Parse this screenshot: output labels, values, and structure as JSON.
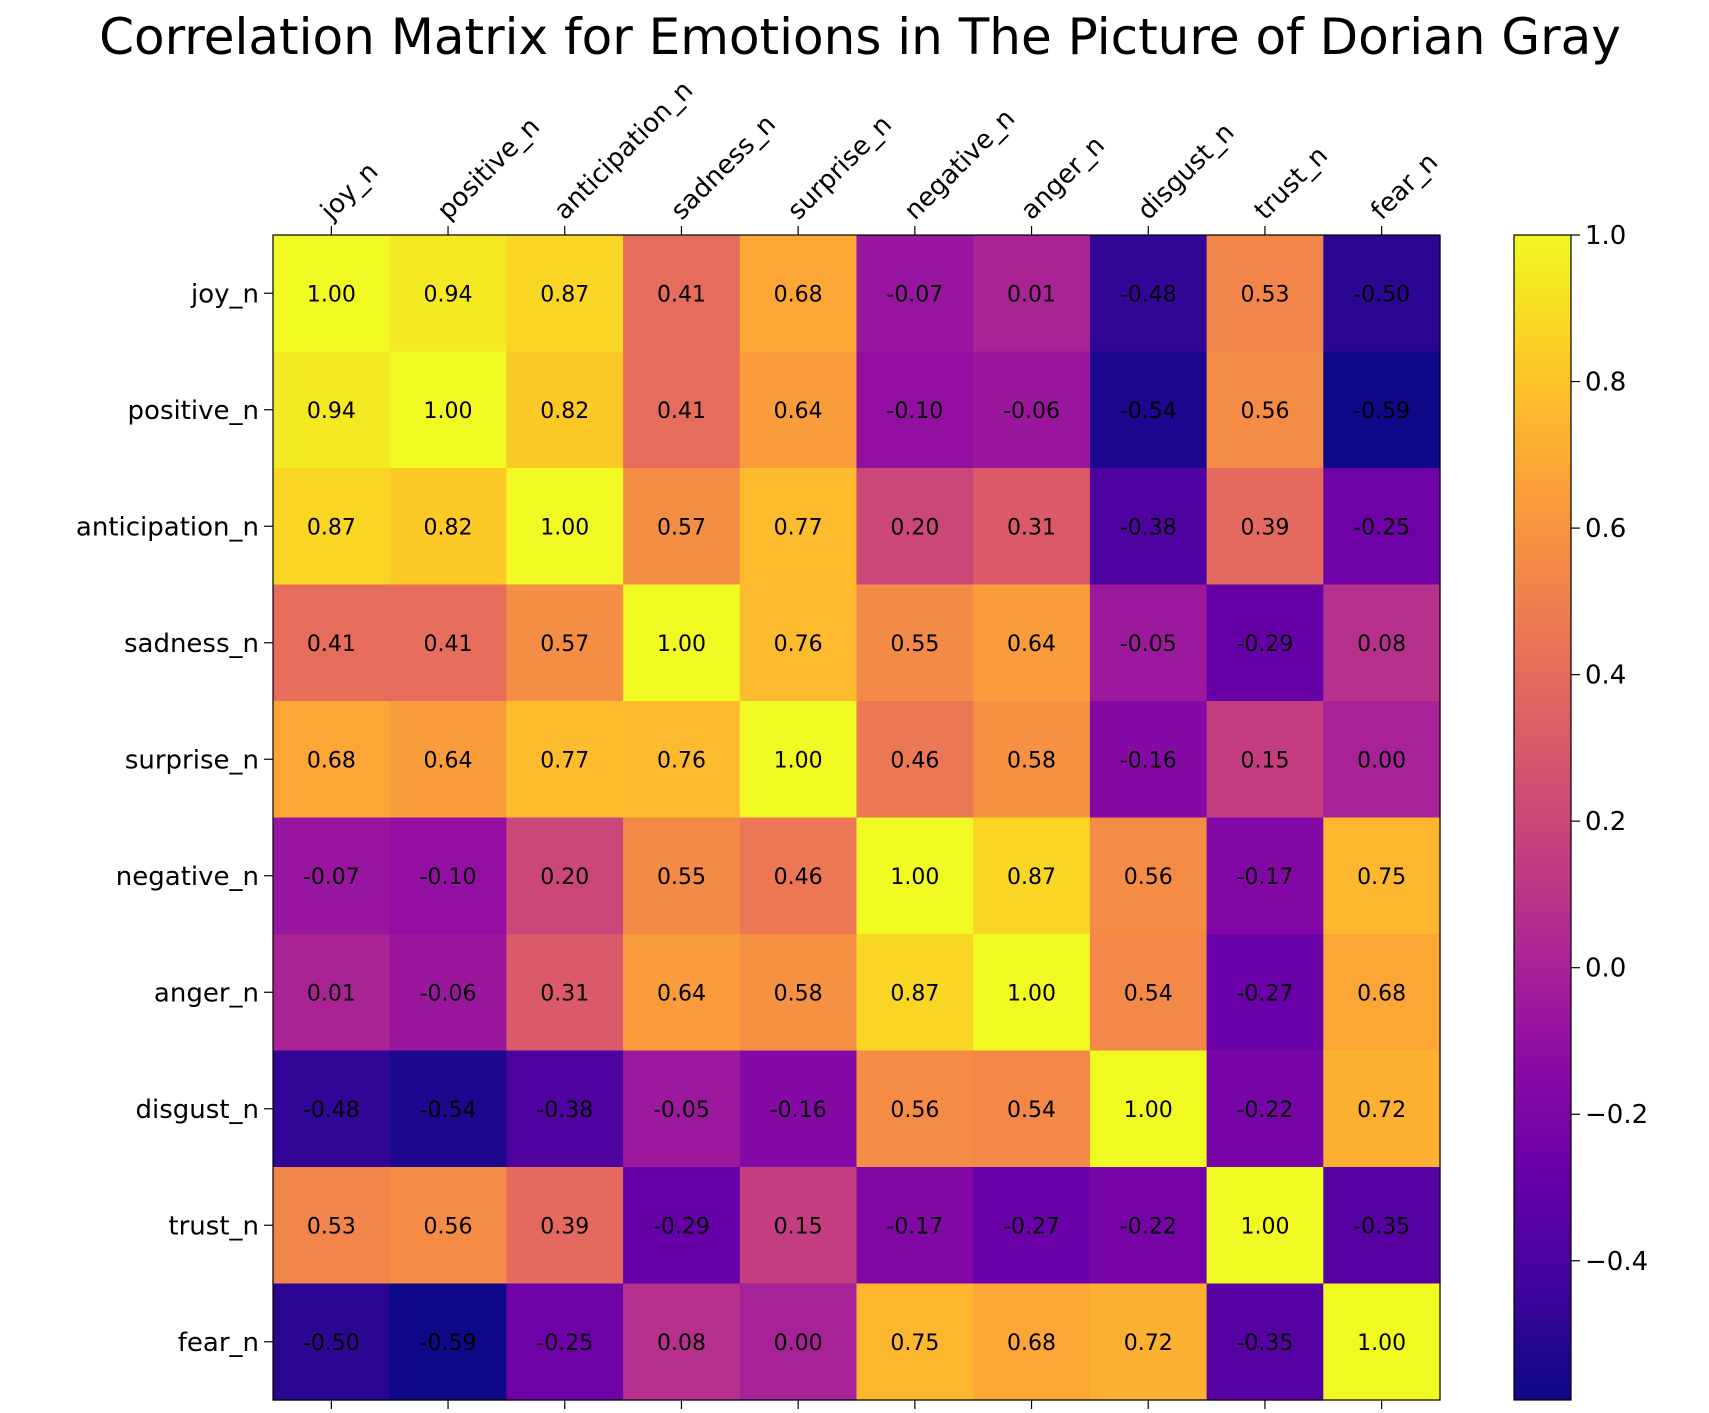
{
  "chart_data": {
    "type": "heatmap",
    "title": "Correlation Matrix for Emotions in The Picture of Dorian Gray",
    "x_labels": [
      "joy_n",
      "positive_n",
      "anticipation_n",
      "sadness_n",
      "surprise_n",
      "negative_n",
      "anger_n",
      "disgust_n",
      "trust_n",
      "fear_n"
    ],
    "y_labels": [
      "joy_n",
      "positive_n",
      "anticipation_n",
      "sadness_n",
      "surprise_n",
      "negative_n",
      "anger_n",
      "disgust_n",
      "trust_n",
      "fear_n"
    ],
    "values": [
      [
        1.0,
        0.94,
        0.87,
        0.41,
        0.68,
        -0.07,
        0.01,
        -0.48,
        0.53,
        -0.5
      ],
      [
        0.94,
        1.0,
        0.82,
        0.41,
        0.64,
        -0.1,
        -0.06,
        -0.54,
        0.56,
        -0.59
      ],
      [
        0.87,
        0.82,
        1.0,
        0.57,
        0.77,
        0.2,
        0.31,
        -0.38,
        0.39,
        -0.25
      ],
      [
        0.41,
        0.41,
        0.57,
        1.0,
        0.76,
        0.55,
        0.64,
        -0.05,
        -0.29,
        0.08
      ],
      [
        0.68,
        0.64,
        0.77,
        0.76,
        1.0,
        0.46,
        0.58,
        -0.16,
        0.15,
        0.0
      ],
      [
        -0.07,
        -0.1,
        0.2,
        0.55,
        0.46,
        1.0,
        0.87,
        0.56,
        -0.17,
        0.75
      ],
      [
        0.01,
        -0.06,
        0.31,
        0.64,
        0.58,
        0.87,
        1.0,
        0.54,
        -0.27,
        0.68
      ],
      [
        -0.48,
        -0.54,
        -0.38,
        -0.05,
        -0.16,
        0.56,
        0.54,
        1.0,
        -0.22,
        0.72
      ],
      [
        0.53,
        0.56,
        0.39,
        -0.29,
        0.15,
        -0.17,
        -0.27,
        -0.22,
        1.0,
        -0.35
      ],
      [
        -0.5,
        -0.59,
        -0.25,
        0.08,
        0.0,
        0.75,
        0.68,
        0.72,
        -0.35,
        1.0
      ]
    ],
    "colormap": "plasma",
    "vmin": -0.59,
    "vmax": 1.0,
    "colorbar_ticks": [
      1.0,
      0.8,
      0.6,
      0.4,
      0.2,
      0.0,
      -0.2,
      -0.4
    ],
    "colorbar_tick_labels": [
      "1.0",
      "0.8",
      "0.6",
      "0.4",
      "0.2",
      "0.0",
      "−0.2",
      "−0.4"
    ],
    "x_label_position": "top",
    "grid": false,
    "legend": "colorbar-right"
  }
}
